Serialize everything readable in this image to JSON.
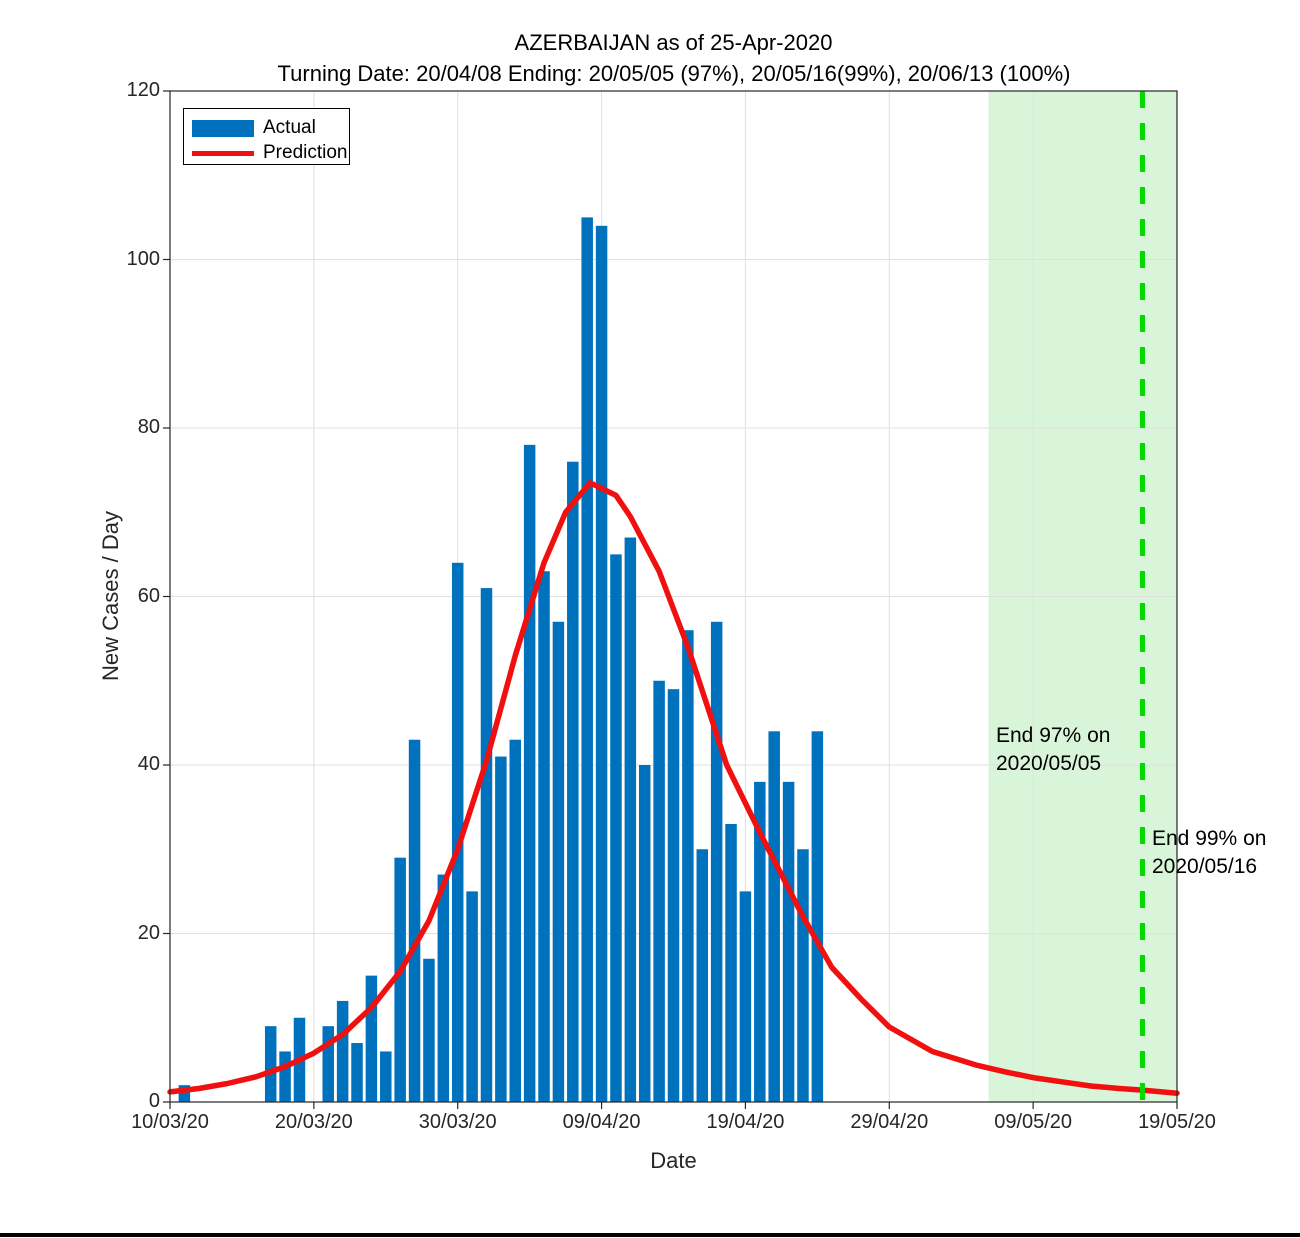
{
  "chart_data": {
    "type": "bar",
    "title": "AZERBAIJAN as of 25-Apr-2020",
    "subtitle": "Turning Date: 20/04/08  Ending: 20/05/05 (97%), 20/05/16(99%), 20/06/13 (100%)",
    "xlabel": "Date",
    "ylabel": "New Cases / Day",
    "ylim": [
      0,
      120
    ],
    "xlim_days": [
      0,
      70
    ],
    "grid": true,
    "legend_position": "top-left",
    "y_ticks": [
      0,
      20,
      40,
      60,
      80,
      100,
      120
    ],
    "x_ticks": [
      {
        "day": 0,
        "label": "10/03/20"
      },
      {
        "day": 10,
        "label": "20/03/20"
      },
      {
        "day": 20,
        "label": "30/03/20"
      },
      {
        "day": 30,
        "label": "09/04/20"
      },
      {
        "day": 40,
        "label": "19/04/20"
      },
      {
        "day": 50,
        "label": "29/04/20"
      },
      {
        "day": 60,
        "label": "09/05/20"
      },
      {
        "day": 70,
        "label": "19/05/20"
      }
    ],
    "series": [
      {
        "name": "Actual",
        "type": "bar",
        "color": "#0072BD",
        "points": [
          [
            "10/03/20",
            0
          ],
          [
            "11/03/20",
            2
          ],
          [
            "12/03/20",
            0
          ],
          [
            "13/03/20",
            0
          ],
          [
            "14/03/20",
            0
          ],
          [
            "15/03/20",
            0
          ],
          [
            "16/03/20",
            0
          ],
          [
            "17/03/20",
            9
          ],
          [
            "18/03/20",
            6
          ],
          [
            "19/03/20",
            10
          ],
          [
            "20/03/20",
            0
          ],
          [
            "21/03/20",
            9
          ],
          [
            "22/03/20",
            12
          ],
          [
            "23/03/20",
            7
          ],
          [
            "24/03/20",
            15
          ],
          [
            "25/03/20",
            6
          ],
          [
            "26/03/20",
            29
          ],
          [
            "27/03/20",
            43
          ],
          [
            "28/03/20",
            17
          ],
          [
            "29/03/20",
            27
          ],
          [
            "30/03/20",
            64
          ],
          [
            "31/03/20",
            25
          ],
          [
            "01/04/20",
            61
          ],
          [
            "02/04/20",
            41
          ],
          [
            "03/04/20",
            43
          ],
          [
            "04/04/20",
            78
          ],
          [
            "05/04/20",
            63
          ],
          [
            "06/04/20",
            57
          ],
          [
            "07/04/20",
            76
          ],
          [
            "08/04/20",
            105
          ],
          [
            "09/04/20",
            104
          ],
          [
            "10/04/20",
            65
          ],
          [
            "11/04/20",
            67
          ],
          [
            "12/04/20",
            40
          ],
          [
            "13/04/20",
            50
          ],
          [
            "14/04/20",
            49
          ],
          [
            "15/04/20",
            56
          ],
          [
            "16/04/20",
            30
          ],
          [
            "17/04/20",
            57
          ],
          [
            "18/04/20",
            33
          ],
          [
            "19/04/20",
            25
          ],
          [
            "20/04/20",
            38
          ],
          [
            "21/04/20",
            44
          ],
          [
            "22/04/20",
            38
          ],
          [
            "23/04/20",
            30
          ],
          [
            "24/04/20",
            44
          ]
        ]
      },
      {
        "name": "Prediction",
        "type": "line",
        "color": "#F01010",
        "peak": {
          "day": 29.2,
          "value": 73.5
        },
        "points": [
          [
            0,
            1.2
          ],
          [
            2,
            1.6
          ],
          [
            4,
            2.2
          ],
          [
            6,
            3.0
          ],
          [
            8,
            4.2
          ],
          [
            10,
            5.8
          ],
          [
            12,
            8.0
          ],
          [
            14,
            11.2
          ],
          [
            16,
            15.5
          ],
          [
            18,
            21.5
          ],
          [
            20,
            30
          ],
          [
            22,
            40.5
          ],
          [
            24,
            53
          ],
          [
            26,
            64
          ],
          [
            27.5,
            70
          ],
          [
            29.2,
            73.5
          ],
          [
            31,
            72
          ],
          [
            32,
            69.5
          ],
          [
            34,
            63
          ],
          [
            36,
            54
          ],
          [
            38.7,
            40
          ],
          [
            41,
            32
          ],
          [
            44,
            22
          ],
          [
            46,
            16
          ],
          [
            48,
            12.3
          ],
          [
            50,
            8.9
          ],
          [
            53,
            6.0
          ],
          [
            56,
            4.4
          ],
          [
            58,
            3.6
          ],
          [
            60,
            2.9
          ],
          [
            62,
            2.4
          ],
          [
            64,
            1.9
          ],
          [
            66,
            1.6
          ],
          [
            68,
            1.35
          ],
          [
            70,
            1.05
          ]
        ]
      }
    ],
    "end_97_region": {
      "date": "2020/05/05",
      "start_day": 56.9,
      "color": "#D9F5D9"
    },
    "end_99_line": {
      "date": "2020/05/16",
      "day": 67.6,
      "color": "#00DC00",
      "style": "dashed"
    },
    "annotations": [
      {
        "line1": "End 97% on",
        "line2": "2020/05/05"
      },
      {
        "line1": "End 99% on",
        "line2": "2020/05/16"
      }
    ]
  },
  "colors": {
    "bar": "#0072BD",
    "prediction": "#F01010",
    "region": "#D9F5D9",
    "dashed_line": "#00DC00",
    "grid": "#E0E0E0",
    "axis": "#262626"
  }
}
